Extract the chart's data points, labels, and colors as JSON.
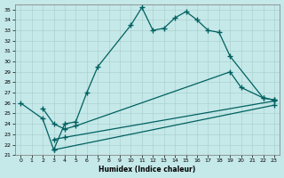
{
  "xlabel": "Humidex (Indice chaleur)",
  "bg_color": "#c5e8e8",
  "grid_color": "#b0d0d0",
  "line_color": "#006060",
  "xlim": [
    -0.5,
    23.5
  ],
  "ylim": [
    21,
    35.5
  ],
  "xticks": [
    0,
    1,
    2,
    3,
    4,
    5,
    6,
    7,
    8,
    9,
    10,
    11,
    12,
    13,
    14,
    15,
    16,
    17,
    18,
    19,
    20,
    21,
    22,
    23
  ],
  "yticks": [
    21,
    22,
    23,
    24,
    25,
    26,
    27,
    28,
    29,
    30,
    31,
    32,
    33,
    34,
    35
  ],
  "curve1_x": [
    0,
    2,
    3,
    4,
    5,
    6,
    7,
    10,
    11,
    12,
    13,
    14,
    15,
    16,
    17,
    18,
    19,
    22,
    23
  ],
  "curve1_y": [
    26.0,
    24.5,
    21.5,
    24.0,
    24.2,
    27.0,
    29.5,
    33.5,
    35.2,
    33.0,
    33.2,
    34.2,
    34.8,
    34.0,
    33.0,
    32.8,
    30.5,
    26.5,
    26.3
  ],
  "curve2_x": [
    2,
    3,
    4,
    5,
    19,
    20,
    22,
    23
  ],
  "curve2_y": [
    25.5,
    24.0,
    23.5,
    23.8,
    29.0,
    27.5,
    26.5,
    26.3
  ],
  "curve3_x": [
    3,
    4,
    23
  ],
  "curve3_y": [
    22.5,
    22.7,
    26.2
  ],
  "curve4_x": [
    3,
    23
  ],
  "curve4_y": [
    21.5,
    25.8
  ]
}
